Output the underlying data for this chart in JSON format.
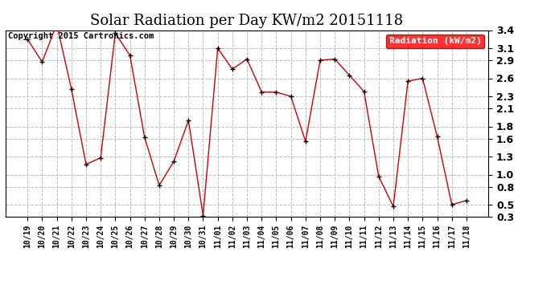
{
  "title": "Solar Radiation per Day KW/m2 20151118",
  "copyright_text": "Copyright 2015 Cartronics.com",
  "legend_label": "Radiation (kW/m2)",
  "background_color": "#ffffff",
  "grid_color": "#bbbbbb",
  "line_color": "#cc0000",
  "marker_color": "#000000",
  "x_labels": [
    "10/19",
    "10/20",
    "10/21",
    "10/22",
    "10/23",
    "10/24",
    "10/25",
    "10/26",
    "10/27",
    "10/28",
    "10/29",
    "10/30",
    "10/31",
    "11/01",
    "11/02",
    "11/03",
    "11/04",
    "11/05",
    "11/06",
    "11/07",
    "11/08",
    "11/09",
    "11/10",
    "11/11",
    "11/12",
    "11/13",
    "11/14",
    "11/15",
    "11/16",
    "11/17",
    "11/18"
  ],
  "y_values": [
    3.25,
    2.87,
    3.5,
    2.42,
    1.17,
    1.28,
    3.35,
    2.98,
    1.62,
    0.82,
    1.22,
    1.9,
    0.32,
    3.1,
    2.75,
    2.92,
    2.37,
    2.37,
    2.3,
    1.55,
    2.9,
    2.92,
    2.65,
    2.38,
    0.97,
    0.47,
    2.55,
    2.6,
    1.63,
    0.5,
    0.57
  ],
  "ylim": [
    0.3,
    3.4
  ],
  "yticks": [
    0.3,
    0.5,
    0.8,
    1.0,
    1.3,
    1.6,
    1.8,
    2.1,
    2.3,
    2.6,
    2.9,
    3.1,
    3.4
  ],
  "title_fontsize": 13,
  "copyright_fontsize": 7.5,
  "tick_fontsize": 7,
  "ytick_fontsize": 9,
  "legend_fontsize": 8
}
